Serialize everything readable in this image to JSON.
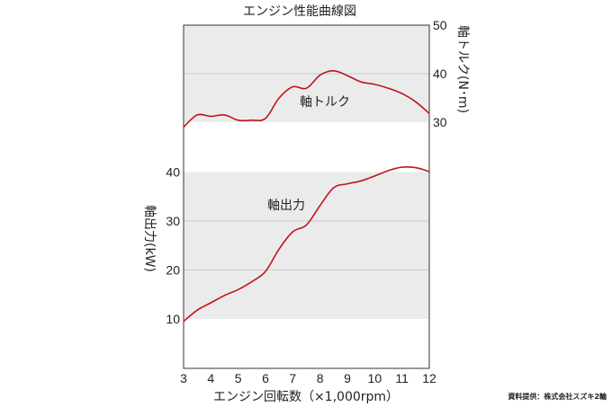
{
  "colors": {
    "curve": "#c0141c",
    "band": "#ebebeb",
    "grid": "#c8c8c8",
    "axis": "#333333"
  },
  "credit": "資料提供：株式会社スズキ2輪",
  "chart_data": [
    {
      "type": "line",
      "title": "エンジン性能曲線図",
      "xlabel": "エンジン回転数（×1,000rpm）",
      "ylabel": "軸トルク(N･m)",
      "series_label": "軸トルク",
      "xlim": [
        3,
        12
      ],
      "ylim": [
        30,
        50
      ],
      "yticks": [
        30,
        40,
        50
      ],
      "y_axis_side": "right",
      "x_ticks": [
        "3",
        "4",
        "5",
        "6",
        "7",
        "8",
        "9",
        "10",
        "11",
        "12"
      ],
      "y_tick_labels": [
        "30",
        "40",
        "50"
      ],
      "grid": true,
      "x": [
        3.0,
        3.5,
        4.0,
        4.5,
        5.0,
        5.5,
        6.0,
        6.5,
        7.0,
        7.5,
        8.0,
        8.5,
        9.0,
        9.5,
        10.0,
        10.5,
        11.0,
        11.5,
        12.0
      ],
      "values": [
        29.0,
        31.5,
        31.2,
        31.5,
        30.4,
        30.4,
        30.8,
        35.0,
        37.3,
        37.0,
        39.7,
        40.6,
        39.6,
        38.3,
        37.8,
        37.0,
        35.9,
        34.2,
        31.8
      ]
    },
    {
      "type": "line",
      "xlabel": "エンジン回転数（×1,000rpm）",
      "ylabel": "軸出力(kW)",
      "series_label": "軸出力",
      "xlim": [
        3,
        12
      ],
      "ylim": [
        10,
        40
      ],
      "yticks": [
        10,
        20,
        30,
        40
      ],
      "y_axis_side": "left",
      "x_ticks": [
        "3",
        "4",
        "5",
        "6",
        "7",
        "8",
        "9",
        "10",
        "11",
        "12"
      ],
      "y_tick_labels": [
        "10",
        "20",
        "30",
        "40"
      ],
      "grid": true,
      "x": [
        3.0,
        3.5,
        4.0,
        4.5,
        5.0,
        5.5,
        6.0,
        6.5,
        7.0,
        7.5,
        8.0,
        8.5,
        9.0,
        9.5,
        10.0,
        10.5,
        11.0,
        11.5,
        12.0
      ],
      "values": [
        9.5,
        11.8,
        13.3,
        14.8,
        16.0,
        17.6,
        19.7,
        24.3,
        27.8,
        29.2,
        33.2,
        36.8,
        37.6,
        38.2,
        39.2,
        40.3,
        41.0,
        40.9,
        40.1
      ]
    }
  ]
}
